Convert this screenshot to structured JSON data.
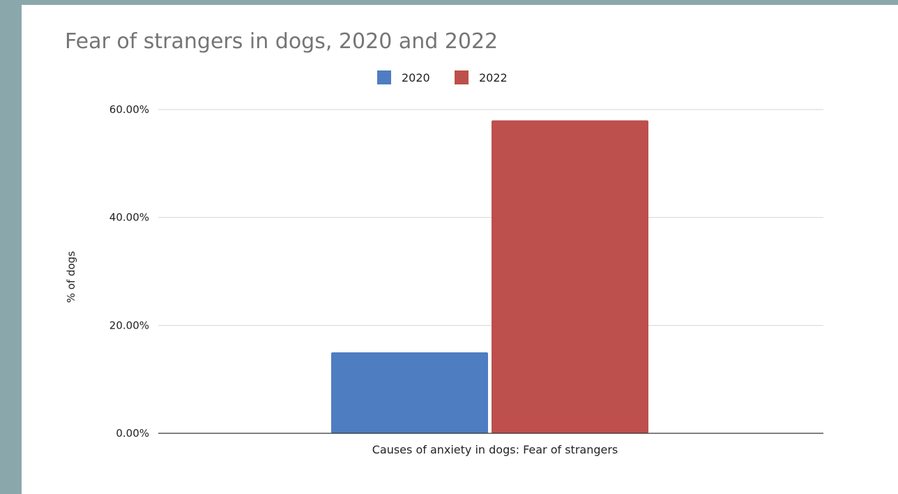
{
  "chart_data": {
    "type": "bar",
    "title": "Fear of strangers in dogs, 2020 and 2022",
    "xlabel": "",
    "ylabel": "% of dogs",
    "categories": [
      "Causes of anxiety in dogs: Fear of strangers"
    ],
    "series": [
      {
        "name": "2020",
        "values": [
          15.0
        ],
        "color": "#4e7dc1"
      },
      {
        "name": "2022",
        "values": [
          58.0
        ],
        "color": "#bd4f4c"
      }
    ],
    "ylim": [
      0,
      60
    ],
    "yticks": [
      0,
      20,
      40,
      60
    ],
    "ytick_labels": [
      "0.00%",
      "20.00%",
      "40.00%",
      "60.00%"
    ],
    "grid": true,
    "legend_position": "top-center"
  }
}
